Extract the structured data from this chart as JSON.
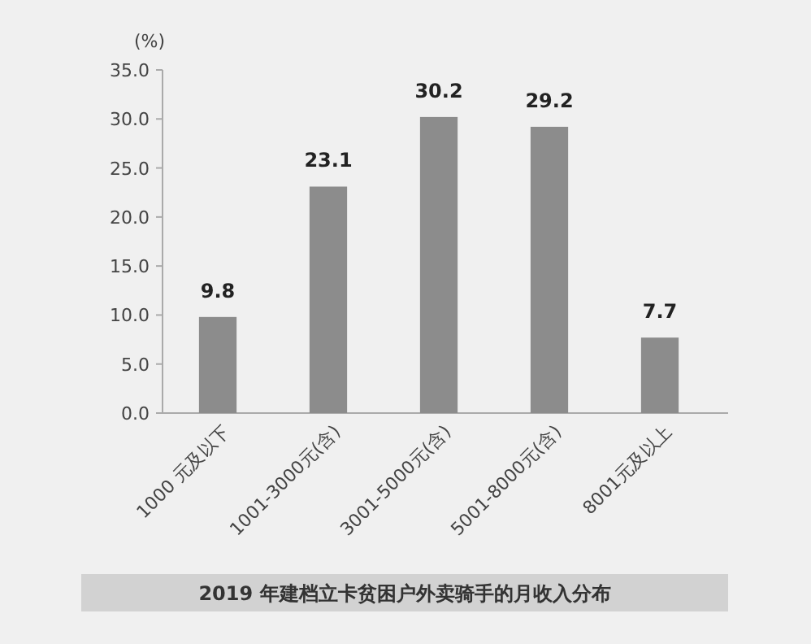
{
  "chart_data": {
    "type": "bar",
    "title": "2019 年建档立卡贫困户外卖骑手的月收入分布",
    "ylabel": "(%)",
    "categories": [
      "1000 元及以下",
      "1001-3000元(含)",
      "3001-5000元(含)",
      "5001-8000元(含)",
      "8001元及以上"
    ],
    "values": [
      9.8,
      23.1,
      30.2,
      29.2,
      7.7
    ],
    "color": "#8c8c8c",
    "ylim": [
      0,
      35
    ],
    "yticks": [
      {
        "value": 0,
        "label": "0.0"
      },
      {
        "value": 5,
        "label": "5.0"
      },
      {
        "value": 10,
        "label": "10.0"
      },
      {
        "value": 15,
        "label": "15.0"
      },
      {
        "value": 20,
        "label": "20.0"
      },
      {
        "value": 25,
        "label": "25.0"
      },
      {
        "value": 30,
        "label": "30.0"
      },
      {
        "value": 35,
        "label": "35.0"
      }
    ],
    "data_labels": true
  }
}
